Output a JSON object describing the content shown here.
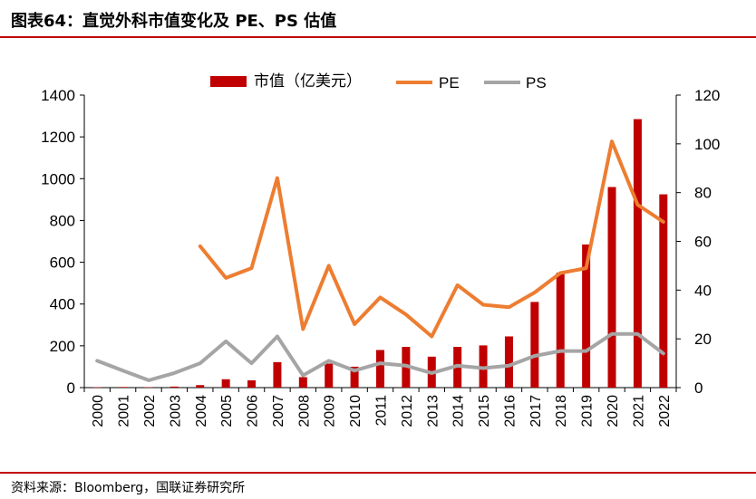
{
  "header": {
    "title": "图表64：直觉外科市值变化及 PE、PS 估值"
  },
  "footer": {
    "source": "资料来源：Bloomberg，国联证券研究所"
  },
  "colors": {
    "accent": "#c00000",
    "bar": "#c00000",
    "pe": "#ed7d31",
    "ps": "#a5a5a5",
    "axis": "#000000"
  },
  "chart_data": {
    "type": "bar",
    "title": "图表64：直觉外科市值变化及 PE、PS 估值",
    "categories": [
      "2000",
      "2001",
      "2002",
      "2003",
      "2004",
      "2005",
      "2006",
      "2007",
      "2008",
      "2009",
      "2010",
      "2011",
      "2012",
      "2013",
      "2014",
      "2015",
      "2016",
      "2017",
      "2018",
      "2019",
      "2020",
      "2021",
      "2022"
    ],
    "series": [
      {
        "name": "市值（亿美元）",
        "type": "bar",
        "axis": "left",
        "values": [
          2,
          3,
          2,
          5,
          12,
          40,
          35,
          122,
          50,
          115,
          100,
          180,
          195,
          148,
          195,
          202,
          245,
          410,
          550,
          685,
          960,
          1285,
          925
        ]
      },
      {
        "name": "PE",
        "type": "line",
        "axis": "right",
        "values": [
          null,
          null,
          null,
          null,
          58,
          45,
          49,
          86,
          24,
          50,
          26,
          37,
          30,
          21,
          42,
          34,
          33,
          39,
          47,
          49,
          101,
          75,
          68
        ]
      },
      {
        "name": "PS",
        "type": "line",
        "axis": "right",
        "values": [
          11,
          7,
          3,
          6,
          10,
          19,
          10,
          21,
          5,
          11,
          7,
          10,
          9,
          6,
          9,
          8,
          9,
          13,
          15,
          15,
          22,
          22,
          14
        ]
      }
    ],
    "y_left": {
      "min": 0,
      "max": 1400,
      "ticks": [
        0,
        200,
        400,
        600,
        800,
        1000,
        1200,
        1400
      ]
    },
    "y_right": {
      "min": 0,
      "max": 120,
      "ticks": [
        0,
        20,
        40,
        60,
        80,
        100,
        120
      ]
    },
    "xlabel": "",
    "ylabel": "",
    "grid": false,
    "legend": "top-center"
  }
}
